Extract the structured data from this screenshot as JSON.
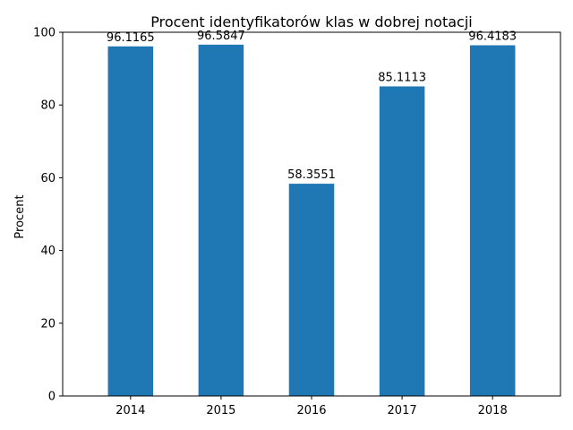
{
  "chart_data": {
    "type": "bar",
    "title": "Procent identyfikatorów klas w dobrej notacji",
    "xlabel": "",
    "ylabel": "Procent",
    "categories": [
      "2014",
      "2015",
      "2016",
      "2017",
      "2018"
    ],
    "values": [
      96.1165,
      96.5847,
      58.3551,
      85.1113,
      96.4183
    ],
    "data_labels": [
      "96.1165",
      "96.5847",
      "58.3551",
      "85.1113",
      "96.4183"
    ],
    "ylim": [
      0,
      100
    ],
    "yticks": [
      "0",
      "20",
      "40",
      "60",
      "80",
      "100"
    ],
    "grid": false,
    "legend": "none",
    "bar_color": "#1f77b4"
  }
}
